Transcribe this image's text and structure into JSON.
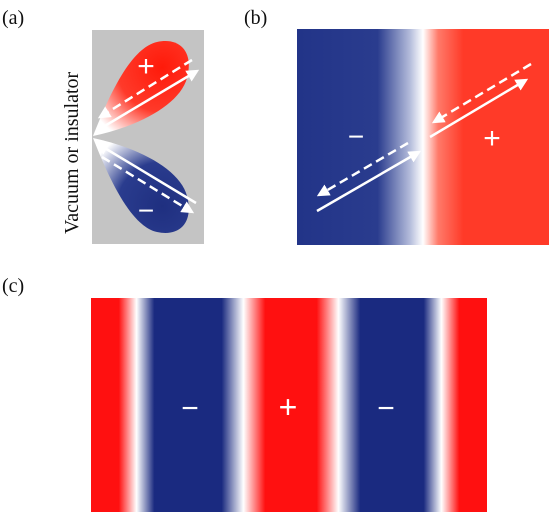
{
  "panels": {
    "a": {
      "label": "(a)",
      "side_text": "Vacuum or insulator",
      "plus": "+",
      "minus": "−"
    },
    "b": {
      "label": "(b)",
      "minus": "−",
      "plus": "+"
    },
    "c": {
      "label": "(c)",
      "signs": [
        "−",
        "+",
        "−"
      ]
    }
  },
  "colors": {
    "red": "#ff2a1a",
    "blue": "#1f2f80",
    "gray": "#c4c4c4",
    "arrow": "#ffffff"
  }
}
